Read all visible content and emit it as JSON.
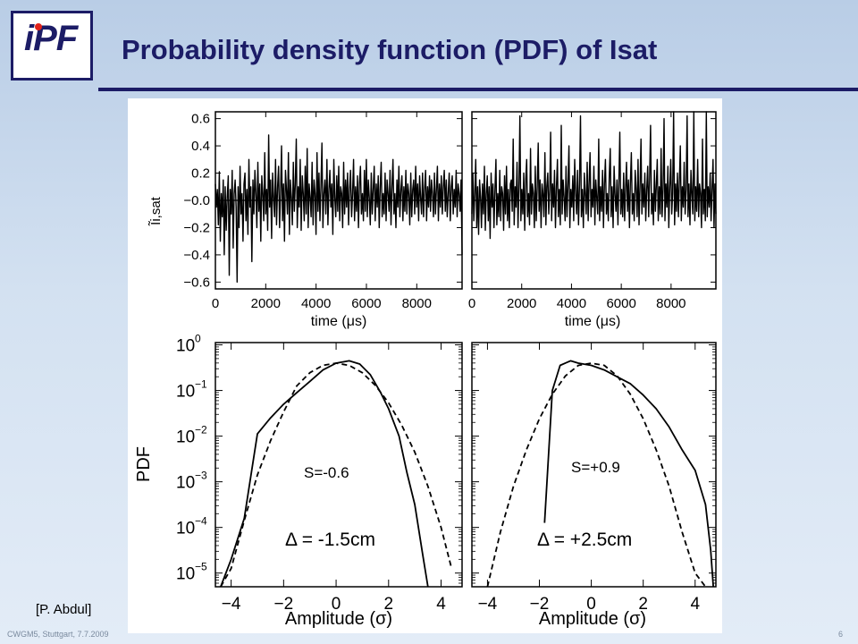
{
  "header": {
    "title": "Probability density function (PDF) of Isat",
    "logo": {
      "text": "PF",
      "prefix": "i"
    }
  },
  "citation": "[P. Abdul]",
  "footer": {
    "left": "CWGM5, Stuttgart, 7.7.2009",
    "page_number": "6"
  },
  "chart_data": [
    {
      "type": "line",
      "ylabel": "Ĩi,sat",
      "xlabel": "time (μs)",
      "xlim": [
        0,
        9800
      ],
      "ylim": [
        -0.65,
        0.65
      ],
      "x_ticks": [
        0,
        2000,
        4000,
        6000,
        8000
      ],
      "y_ticks": [
        0.6,
        0.4,
        0.2,
        0.0,
        -0.2,
        -0.4,
        -0.6
      ],
      "y_tick_labels": [
        "0.6",
        "0.4",
        "0.2",
        "−0.0",
        "−0.2",
        "−0.4",
        "−0.6"
      ],
      "reference_line_y": 0,
      "series": [
        {
          "sample_count": 260,
          "values": [
            0.12,
            -0.05,
            0.08,
            -0.18,
            0.21,
            -0.3,
            0.05,
            -0.12,
            0.15,
            -0.4,
            0.1,
            -0.22,
            0.02,
            0.18,
            -0.55,
            0.08,
            -0.1,
            0.22,
            -0.35,
            0.05,
            0.15,
            -0.05,
            -0.6,
            0.1,
            -0.2,
            0.25,
            -0.1,
            0.05,
            -0.3,
            0.12,
            0.2,
            -0.15,
            0.08,
            -0.25,
            0.3,
            -0.05,
            0.1,
            -0.45,
            0.15,
            -0.1,
            0.22,
            0.05,
            -0.2,
            0.28,
            -0.08,
            0.12,
            -0.3,
            0.18,
            0.05,
            -0.15,
            0.35,
            -0.1,
            0.08,
            -0.22,
            0.48,
            -0.05,
            0.15,
            -0.28,
            0.2,
            0.02,
            -0.12,
            0.3,
            -0.18,
            0.1,
            0.25,
            -0.2,
            0.05,
            0.4,
            -0.15,
            0.12,
            -0.3,
            0.22,
            0.08,
            -0.1,
            0.35,
            -0.25,
            0.15,
            0.02,
            -0.18,
            0.28,
            -0.08,
            0.12,
            0.45,
            -0.2,
            0.1,
            -0.05,
            0.3,
            -0.22,
            0.18,
            0.05,
            -0.15,
            0.25,
            -0.1,
            0.38,
            -0.2,
            0.12,
            0.02,
            -0.12,
            0.28,
            -0.18,
            0.15,
            0.05,
            -0.25,
            0.35,
            -0.08,
            0.2,
            -0.15,
            0.1,
            0.42,
            -0.2,
            0.05,
            0.15,
            -0.1,
            0.3,
            -0.18,
            0.08,
            0.22,
            -0.05,
            0.12,
            -0.25,
            0.3,
            0.02,
            -0.12,
            0.18,
            -0.08,
            0.25,
            -0.15,
            0.1,
            0.05,
            -0.2,
            0.28,
            -0.1,
            0.15,
            -0.05,
            0.2,
            -0.18,
            0.08,
            0.22,
            -0.12,
            0.05,
            0.3,
            -0.15,
            0.1,
            -0.08,
            0.18,
            -0.2,
            0.12,
            0.25,
            -0.1,
            0.05,
            -0.15,
            0.22,
            -0.08,
            0.3,
            -0.12,
            0.15,
            0.02,
            -0.18,
            0.2,
            -0.1,
            0.08,
            0.25,
            -0.15,
            0.12,
            -0.05,
            0.18,
            -0.2,
            0.1,
            0.28,
            -0.12,
            0.05,
            -0.1,
            0.2,
            -0.15,
            0.15,
            0.05,
            -0.08,
            0.22,
            -0.18,
            0.1,
            0.3,
            -0.1,
            0.05,
            -0.2,
            0.15,
            -0.05,
            0.25,
            -0.12,
            0.08,
            0.18,
            -0.15,
            0.1,
            -0.08,
            0.22,
            -0.1,
            0.12,
            0.05,
            -0.18,
            0.2,
            -0.12,
            0.08,
            0.15,
            -0.1,
            0.25,
            -0.05,
            0.12,
            -0.15,
            0.18,
            0.02,
            -0.1,
            0.2,
            -0.12,
            0.08,
            0.22,
            -0.15,
            0.1,
            -0.05,
            0.18,
            -0.08,
            0.15,
            0.05,
            -0.12,
            0.2,
            -0.1,
            0.08,
            0.25,
            -0.15,
            0.12,
            -0.05,
            0.18,
            -0.1,
            0.1,
            0.22,
            -0.08,
            0.15,
            -0.12,
            0.05,
            0.2,
            -0.15,
            0.1,
            0.18,
            -0.1,
            0.08,
            -0.05,
            0.22,
            -0.12,
            0.12,
            0.05,
            -0.08,
            0.15,
            -0.4
          ]
        }
      ]
    },
    {
      "type": "line",
      "xlabel": "time (μs)",
      "xlim": [
        0,
        9800
      ],
      "ylim": [
        -0.65,
        0.65
      ],
      "x_ticks": [
        0,
        2000,
        4000,
        6000,
        8000
      ],
      "reference_line_y": 0,
      "series": [
        {
          "sample_count": 260,
          "values": [
            -0.1,
            0.2,
            -0.15,
            0.05,
            0.3,
            -0.2,
            0.1,
            -0.25,
            0.15,
            0.02,
            -0.2,
            0.12,
            -0.1,
            0.25,
            -0.22,
            0.05,
            0.18,
            -0.15,
            0.1,
            -0.28,
            0.2,
            -0.05,
            0.12,
            -0.2,
            0.08,
            0.3,
            -0.18,
            0.05,
            -0.12,
            0.22,
            -0.15,
            0.1,
            0.05,
            -0.22,
            0.18,
            -0.1,
            0.25,
            -0.15,
            0.08,
            -0.2,
            0.12,
            0.15,
            -0.08,
            0.45,
            -0.18,
            0.1,
            -0.05,
            0.28,
            -0.2,
            0.12,
            0.62,
            -0.15,
            0.08,
            -0.1,
            0.2,
            -0.22,
            0.15,
            0.3,
            -0.12,
            0.05,
            -0.18,
            0.38,
            -0.1,
            0.12,
            0.05,
            -0.2,
            0.25,
            -0.15,
            0.1,
            0.42,
            -0.08,
            0.15,
            -0.2,
            0.12,
            0.05,
            -0.12,
            0.35,
            -0.18,
            0.1,
            0.2,
            -0.1,
            0.08,
            0.5,
            -0.15,
            0.12,
            -0.05,
            0.22,
            -0.2,
            0.1,
            0.3,
            -0.12,
            0.08,
            -0.18,
            0.55,
            -0.1,
            0.15,
            0.02,
            -0.15,
            0.25,
            -0.12,
            0.12,
            0.4,
            -0.2,
            0.08,
            -0.05,
            0.18,
            -0.15,
            0.3,
            0.05,
            -0.1,
            0.22,
            -0.18,
            0.12,
            0.62,
            -0.12,
            0.08,
            -0.2,
            0.2,
            0.05,
            -0.1,
            0.28,
            -0.15,
            0.12,
            0.35,
            -0.12,
            0.08,
            -0.05,
            0.25,
            -0.18,
            0.15,
            0.02,
            -0.1,
            0.45,
            -0.15,
            0.1,
            -0.08,
            0.22,
            -0.2,
            0.12,
            0.3,
            -0.1,
            0.05,
            -0.15,
            0.18,
            0.38,
            -0.12,
            0.1,
            -0.2,
            0.25,
            0.05,
            -0.08,
            0.15,
            -0.18,
            0.12,
            0.5,
            -0.1,
            0.08,
            -0.12,
            0.2,
            -0.15,
            0.1,
            0.28,
            -0.08,
            0.15,
            -0.2,
            0.12,
            0.35,
            -0.1,
            0.05,
            -0.15,
            0.22,
            0.08,
            -0.12,
            0.3,
            -0.18,
            0.1,
            0.45,
            -0.1,
            0.12,
            -0.05,
            0.2,
            -0.15,
            0.08,
            0.25,
            -0.12,
            0.15,
            0.55,
            -0.1,
            0.05,
            -0.18,
            0.22,
            -0.08,
            0.12,
            0.3,
            -0.15,
            0.1,
            -0.1,
            0.38,
            -0.12,
            0.08,
            0.6,
            -0.15,
            0.12,
            -0.05,
            0.25,
            -0.2,
            0.1,
            0.3,
            -0.1,
            0.05,
            0.65,
            -0.18,
            0.12,
            -0.08,
            0.2,
            -0.12,
            0.15,
            0.4,
            -0.15,
            0.1,
            -0.05,
            0.28,
            -0.1,
            0.08,
            0.62,
            -0.12,
            0.12,
            -0.18,
            0.22,
            0.05,
            -0.1,
            0.65,
            -0.15,
            0.1,
            -0.08,
            0.3,
            -0.12,
            0.12,
            0.05,
            -0.2,
            0.45,
            -0.1,
            0.08,
            -0.15,
            0.65,
            -0.12,
            0.1,
            -0.05,
            0.2,
            -0.15,
            0.08,
            0.3,
            -0.2,
            0.12,
            -0.1
          ]
        }
      ]
    },
    {
      "type": "line",
      "scale_y": "log",
      "ylabel": "PDF",
      "xlabel": "Amplitude (σ)",
      "xlim": [
        -4.6,
        4.8
      ],
      "ylim_log10": [
        -5.3,
        0.05
      ],
      "x_ticks": [
        -4,
        -2,
        0,
        2,
        4
      ],
      "y_tick_exponents": [
        0,
        -1,
        -2,
        -3,
        -4,
        -5
      ],
      "y_tick_base": "10",
      "annotations": [
        "S=-0.6",
        "Δ = -1.5cm"
      ],
      "series": [
        {
          "style": "solid",
          "x": [
            -4.4,
            -4.0,
            -3.5,
            -3.0,
            -2.5,
            -2.0,
            -1.5,
            -1.0,
            -0.5,
            0.0,
            0.5,
            0.9,
            1.3,
            1.7,
            2.0,
            2.4,
            2.7,
            3.0,
            3.3,
            3.5
          ],
          "log10_y": [
            -5.3,
            -4.7,
            -3.8,
            -1.95,
            -1.6,
            -1.3,
            -1.05,
            -0.8,
            -0.55,
            -0.4,
            -0.35,
            -0.42,
            -0.65,
            -1.05,
            -1.4,
            -2.0,
            -2.8,
            -3.5,
            -4.6,
            -5.3
          ]
        },
        {
          "style": "dashed",
          "x": [
            -4.4,
            -4.0,
            -3.5,
            -3.0,
            -2.5,
            -2.0,
            -1.5,
            -1.0,
            -0.5,
            0.0,
            0.5,
            1.0,
            1.5,
            2.0,
            2.5,
            3.0,
            3.5,
            4.0,
            4.4
          ],
          "log10_y": [
            -5.3,
            -4.9,
            -3.85,
            -2.85,
            -2.1,
            -1.47,
            -0.9,
            -0.61,
            -0.45,
            -0.4,
            -0.45,
            -0.61,
            -0.89,
            -1.27,
            -1.76,
            -2.35,
            -3.1,
            -4.0,
            -4.9
          ]
        }
      ]
    },
    {
      "type": "line",
      "scale_y": "log",
      "xlabel": "Amplitude (σ)",
      "xlim": [
        -4.6,
        4.8
      ],
      "ylim_log10": [
        -5.3,
        0.05
      ],
      "x_ticks": [
        -4,
        -2,
        0,
        2,
        4
      ],
      "annotations": [
        "S=+0.9",
        "Δ = +2.5cm"
      ],
      "series": [
        {
          "style": "solid",
          "x": [
            -1.8,
            -1.5,
            -1.2,
            -0.8,
            -0.5,
            0.0,
            0.5,
            1.0,
            1.5,
            2.0,
            2.5,
            3.0,
            3.5,
            4.0,
            4.4,
            4.6,
            4.7
          ],
          "log10_y": [
            -3.9,
            -1.0,
            -0.45,
            -0.35,
            -0.4,
            -0.45,
            -0.55,
            -0.7,
            -0.85,
            -1.1,
            -1.4,
            -1.8,
            -2.3,
            -2.75,
            -3.5,
            -4.5,
            -5.3
          ]
        },
        {
          "style": "dashed",
          "x": [
            -4.0,
            -3.5,
            -3.0,
            -2.5,
            -2.0,
            -1.5,
            -1.0,
            -0.5,
            0.0,
            0.5,
            1.0,
            1.5,
            2.0,
            2.5,
            3.0,
            3.5,
            4.0,
            4.4
          ],
          "log10_y": [
            -5.3,
            -4.1,
            -3.1,
            -2.3,
            -1.62,
            -1.08,
            -0.68,
            -0.45,
            -0.4,
            -0.45,
            -0.68,
            -1.08,
            -1.62,
            -2.3,
            -3.1,
            -4.1,
            -5.0,
            -5.3
          ]
        }
      ]
    }
  ]
}
